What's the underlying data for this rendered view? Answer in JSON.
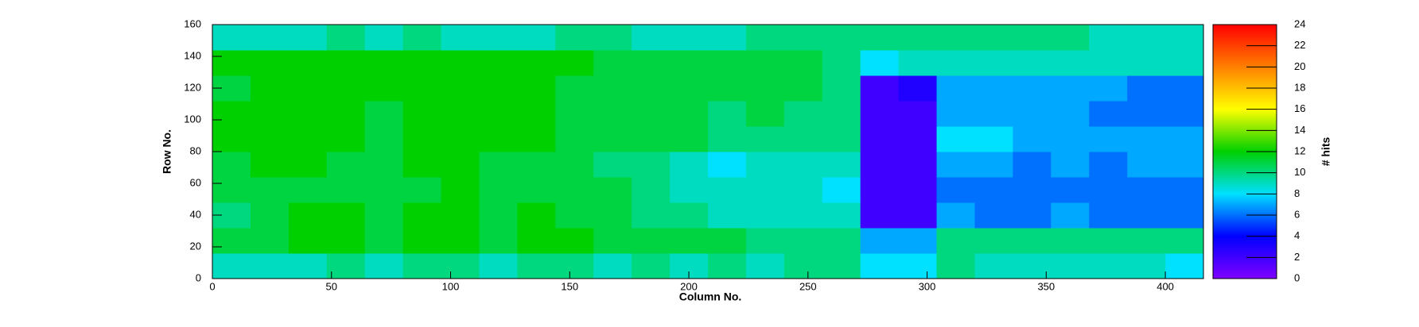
{
  "chart_data": {
    "type": "heatmap",
    "x_label": "Column No.",
    "y_label": "Row No.",
    "z_label": "# hits",
    "xbins": [
      0,
      16,
      32,
      48,
      64,
      80,
      96,
      112,
      128,
      144,
      160,
      176,
      192,
      208,
      224,
      240,
      256,
      272,
      288,
      304,
      320,
      336,
      352,
      368,
      384,
      400,
      416
    ],
    "ybins": [
      0,
      16,
      32,
      48,
      64,
      80,
      96,
      112,
      128,
      144,
      160
    ],
    "z": [
      [
        9,
        9,
        9,
        10,
        9,
        10,
        10,
        9,
        10,
        10,
        9,
        10,
        9,
        10,
        9,
        10,
        10,
        8,
        8,
        10,
        9,
        9,
        9,
        9,
        9,
        8
      ],
      [
        11,
        11,
        12,
        12,
        11,
        12,
        12,
        11,
        12,
        12,
        11,
        11,
        11,
        11,
        10,
        10,
        10,
        7,
        7,
        10,
        10,
        10,
        10,
        10,
        10,
        10
      ],
      [
        10,
        11,
        12,
        12,
        11,
        12,
        12,
        11,
        12,
        11,
        11,
        10,
        10,
        9,
        9,
        9,
        9,
        2,
        2,
        7,
        6,
        6,
        7,
        6,
        6,
        6
      ],
      [
        11,
        11,
        11,
        11,
        11,
        11,
        12,
        11,
        11,
        11,
        11,
        10,
        9,
        9,
        9,
        9,
        8,
        2,
        2,
        6,
        6,
        6,
        6,
        6,
        6,
        6
      ],
      [
        11,
        12,
        12,
        11,
        11,
        12,
        12,
        11,
        11,
        11,
        10,
        10,
        9,
        8,
        9,
        9,
        9,
        2,
        2,
        7,
        7,
        6,
        7,
        6,
        7,
        7
      ],
      [
        12,
        12,
        12,
        12,
        11,
        12,
        12,
        12,
        12,
        11,
        11,
        11,
        11,
        10,
        10,
        10,
        10,
        2,
        2,
        8,
        8,
        7,
        7,
        7,
        7,
        7
      ],
      [
        12,
        12,
        12,
        12,
        11,
        12,
        12,
        12,
        12,
        11,
        11,
        11,
        11,
        10,
        11,
        10,
        10,
        2,
        2,
        7,
        7,
        7,
        7,
        6,
        6,
        6
      ],
      [
        11,
        12,
        12,
        12,
        12,
        12,
        12,
        12,
        12,
        11,
        11,
        11,
        11,
        11,
        11,
        11,
        10,
        2,
        3,
        7,
        7,
        7,
        7,
        7,
        6,
        6
      ],
      [
        12,
        12,
        12,
        12,
        12,
        12,
        12,
        12,
        12,
        12,
        11,
        11,
        11,
        11,
        11,
        11,
        10,
        8,
        9,
        9,
        9,
        9,
        9,
        9,
        9,
        9
      ],
      [
        9,
        9,
        9,
        10,
        9,
        10,
        9,
        9,
        9,
        10,
        10,
        9,
        9,
        9,
        10,
        10,
        10,
        10,
        10,
        10,
        10,
        10,
        10,
        9,
        9,
        9
      ]
    ],
    "xlim": [
      0,
      416
    ],
    "ylim": [
      0,
      160
    ],
    "zlim": [
      0,
      24
    ],
    "xticks": [
      0,
      50,
      100,
      150,
      200,
      250,
      300,
      350,
      400
    ],
    "yticks": [
      0,
      20,
      40,
      60,
      80,
      100,
      120,
      140,
      160
    ],
    "zticks": [
      0,
      2,
      4,
      6,
      8,
      10,
      12,
      14,
      16,
      18,
      20,
      22,
      24
    ],
    "palette": [
      "#7f00ff",
      "#0000ff",
      "#00e0ff",
      "#00d000",
      "#ffff00",
      "#ff8000",
      "#ff0000"
    ]
  }
}
